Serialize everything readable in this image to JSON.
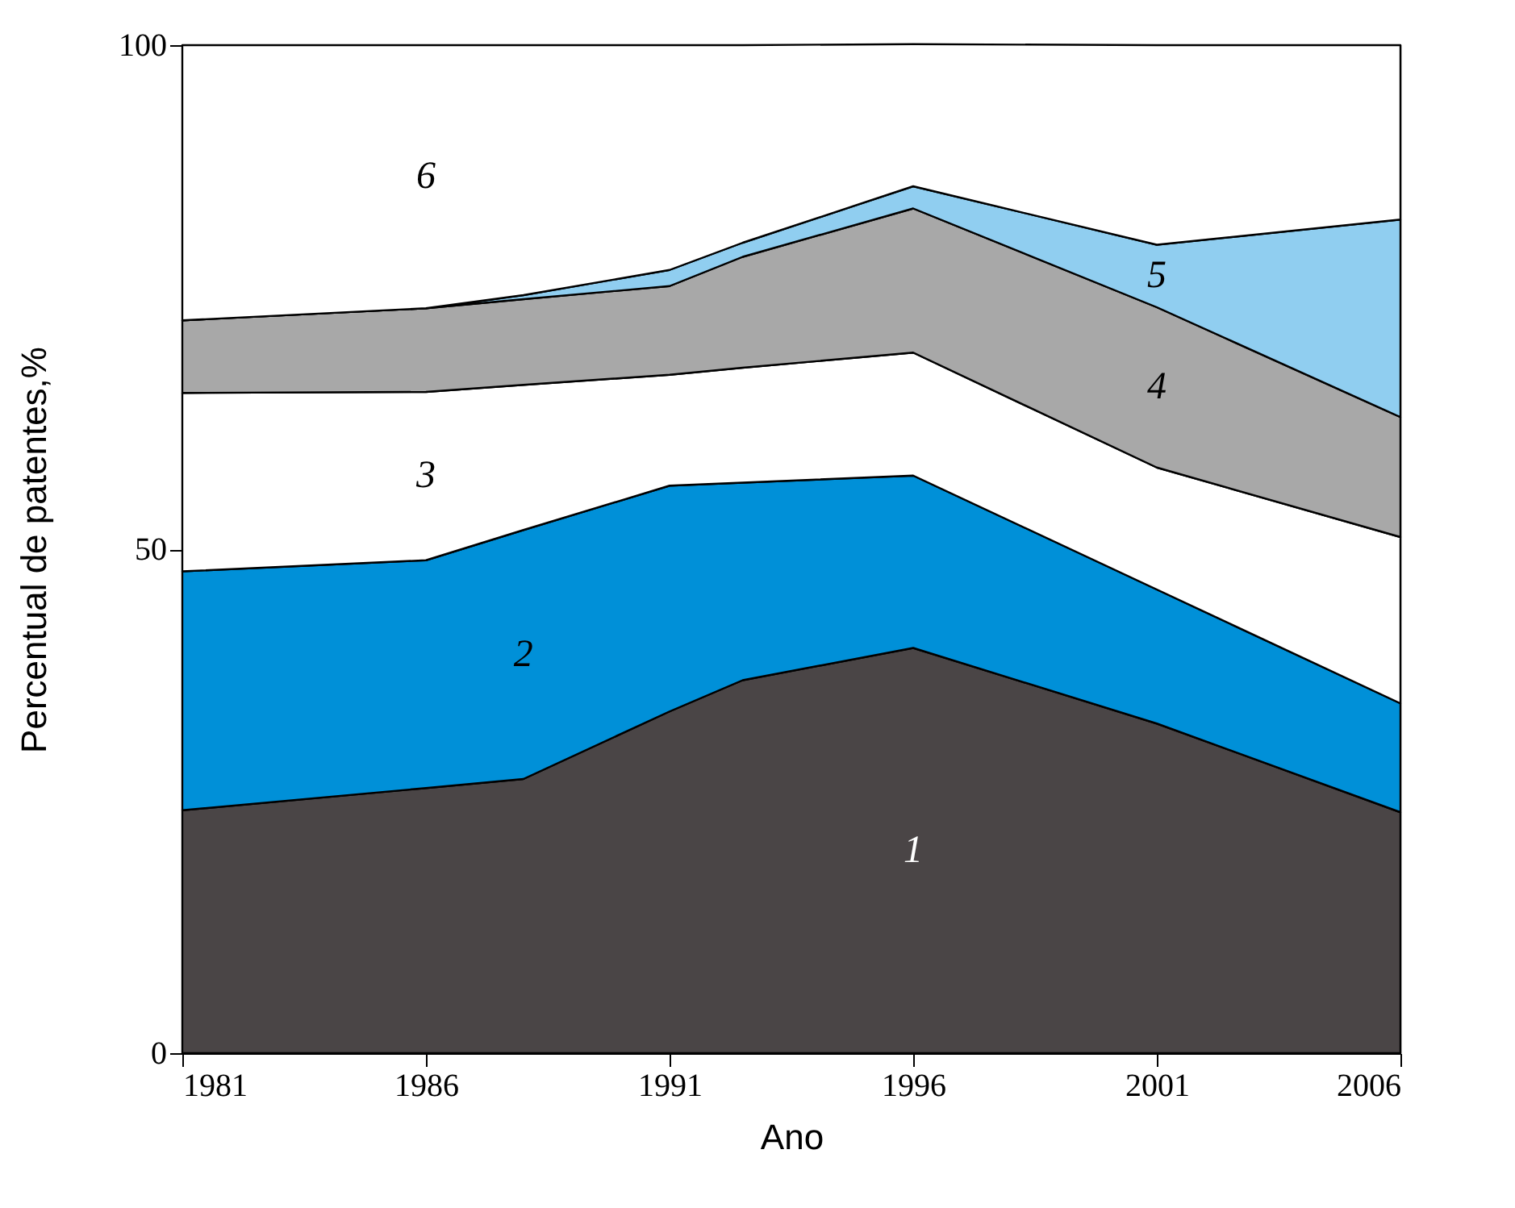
{
  "chart_data": {
    "type": "area",
    "stacked": true,
    "xlabel": "Ano",
    "ylabel": "Percentual de patentes,%",
    "x": [
      1981,
      1986,
      1988,
      1991,
      1992.5,
      1996,
      2001,
      2006
    ],
    "series": [
      {
        "color": "#4a4546",
        "values": [
          24.1,
          26.3,
          27.2,
          33.9,
          37.0,
          40.2,
          32.7,
          23.9
        ]
      },
      {
        "color": "#0090d8",
        "values": [
          23.7,
          22.6,
          24.7,
          22.4,
          19.6,
          17.1,
          13.3,
          10.8
        ]
      },
      {
        "color": "#ffffff",
        "values": [
          17.7,
          16.7,
          14.4,
          11.0,
          11.4,
          12.2,
          12.1,
          16.5
        ]
      },
      {
        "color": "#a8a8a8",
        "values": [
          7.2,
          8.3,
          8.5,
          8.8,
          11.0,
          14.3,
          15.9,
          11.9
        ]
      },
      {
        "color": "#90cef0",
        "values": [
          0,
          0,
          0.4,
          1.6,
          1.4,
          2.2,
          6.2,
          19.6
        ]
      },
      {
        "color": "#ffffff",
        "values": [
          27.3,
          26.1,
          24.8,
          22.3,
          19.6,
          14.1,
          19.8,
          17.3
        ]
      }
    ],
    "annotations": [
      "1",
      "2",
      "3",
      "4",
      "5",
      "6"
    ],
    "xlim": [
      1981,
      2006
    ],
    "xticks": [
      1981,
      1986,
      1991,
      1996,
      2001,
      2006
    ],
    "ylim": [
      0,
      100
    ],
    "yticks": [
      0,
      50,
      100
    ]
  }
}
